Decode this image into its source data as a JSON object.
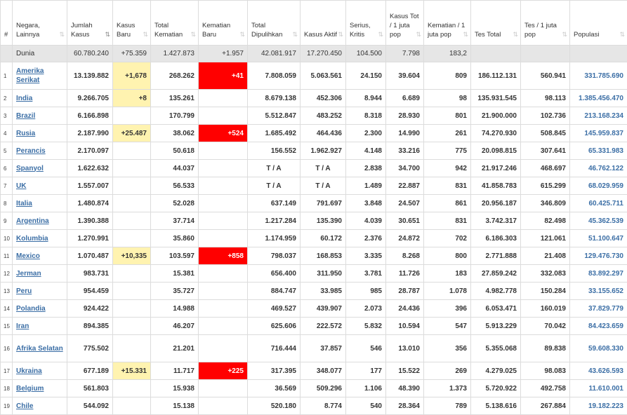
{
  "headers": [
    {
      "label": "#",
      "sortable": false
    },
    {
      "label": "Negara, Lainnya",
      "sortable": true
    },
    {
      "label": "Jumlah Kasus",
      "sortable": true,
      "active": true
    },
    {
      "label": "Kasus Baru",
      "sortable": true
    },
    {
      "label": "Total Kematian",
      "sortable": true
    },
    {
      "label": "Kematian Baru",
      "sortable": true
    },
    {
      "label": "Total Dipulihkan",
      "sortable": true
    },
    {
      "label": "Kasus Aktif",
      "sortable": true
    },
    {
      "label": "Serius, Kritis",
      "sortable": true
    },
    {
      "label": "Kasus Tot / 1 juta pop",
      "sortable": true
    },
    {
      "label": "Kematian / 1 juta pop",
      "sortable": true
    },
    {
      "label": "Tes Total",
      "sortable": true
    },
    {
      "label": "Tes / 1 juta pop",
      "sortable": true
    },
    {
      "label": "Populasi",
      "sortable": true
    }
  ],
  "world": {
    "name": "Dunia",
    "total_cases": "60.780.240",
    "new_cases": "+75.359",
    "total_deaths": "1.427.873",
    "new_deaths": "+1.957",
    "recovered": "42.081.917",
    "active": "17.270.450",
    "critical": "104.500",
    "cases_per_m": "7.798",
    "deaths_per_m": "183,2",
    "tests": "",
    "tests_per_m": "",
    "population": ""
  },
  "rows": [
    {
      "idx": "1",
      "name": "Amerika Serikat",
      "total_cases": "13.139.882",
      "new_cases": "+1,678",
      "total_deaths": "268.262",
      "new_deaths": "+41",
      "recovered": "7.808.059",
      "active": "5.063.561",
      "critical": "24.150",
      "cases_per_m": "39.604",
      "deaths_per_m": "809",
      "tests": "186.112.131",
      "tests_per_m": "560.941",
      "population": "331.785.690",
      "tall": true
    },
    {
      "idx": "2",
      "name": "India",
      "total_cases": "9.266.705",
      "new_cases": "+8",
      "total_deaths": "135.261",
      "new_deaths": "",
      "recovered": "8.679.138",
      "active": "452.306",
      "critical": "8.944",
      "cases_per_m": "6.689",
      "deaths_per_m": "98",
      "tests": "135.931.545",
      "tests_per_m": "98.113",
      "population": "1.385.456.470"
    },
    {
      "idx": "3",
      "name": "Brazil",
      "total_cases": "6.166.898",
      "new_cases": "",
      "total_deaths": "170.799",
      "new_deaths": "",
      "recovered": "5.512.847",
      "active": "483.252",
      "critical": "8.318",
      "cases_per_m": "28.930",
      "deaths_per_m": "801",
      "tests": "21.900.000",
      "tests_per_m": "102.736",
      "population": "213.168.234"
    },
    {
      "idx": "4",
      "name": "Rusia",
      "total_cases": "2.187.990",
      "new_cases": "+25.487",
      "total_deaths": "38.062",
      "new_deaths": "+524",
      "recovered": "1.685.492",
      "active": "464.436",
      "critical": "2.300",
      "cases_per_m": "14.990",
      "deaths_per_m": "261",
      "tests": "74.270.930",
      "tests_per_m": "508.845",
      "population": "145.959.837"
    },
    {
      "idx": "5",
      "name": "Perancis",
      "total_cases": "2.170.097",
      "new_cases": "",
      "total_deaths": "50.618",
      "new_deaths": "",
      "recovered": "156.552",
      "active": "1.962.927",
      "critical": "4.148",
      "cases_per_m": "33.216",
      "deaths_per_m": "775",
      "tests": "20.098.815",
      "tests_per_m": "307.641",
      "population": "65.331.983"
    },
    {
      "idx": "6",
      "name": "Spanyol",
      "total_cases": "1.622.632",
      "new_cases": "",
      "total_deaths": "44.037",
      "new_deaths": "",
      "recovered": "T / A",
      "active": "T / A",
      "critical": "2.838",
      "cases_per_m": "34.700",
      "deaths_per_m": "942",
      "tests": "21.917.246",
      "tests_per_m": "468.697",
      "population": "46.762.122"
    },
    {
      "idx": "7",
      "name": "UK",
      "total_cases": "1.557.007",
      "new_cases": "",
      "total_deaths": "56.533",
      "new_deaths": "",
      "recovered": "T / A",
      "active": "T / A",
      "critical": "1.489",
      "cases_per_m": "22.887",
      "deaths_per_m": "831",
      "tests": "41.858.783",
      "tests_per_m": "615.299",
      "population": "68.029.959"
    },
    {
      "idx": "8",
      "name": "Italia",
      "total_cases": "1.480.874",
      "new_cases": "",
      "total_deaths": "52.028",
      "new_deaths": "",
      "recovered": "637.149",
      "active": "791.697",
      "critical": "3.848",
      "cases_per_m": "24.507",
      "deaths_per_m": "861",
      "tests": "20.956.187",
      "tests_per_m": "346.809",
      "population": "60.425.711"
    },
    {
      "idx": "9",
      "name": "Argentina",
      "total_cases": "1.390.388",
      "new_cases": "",
      "total_deaths": "37.714",
      "new_deaths": "",
      "recovered": "1.217.284",
      "active": "135.390",
      "critical": "4.039",
      "cases_per_m": "30.651",
      "deaths_per_m": "831",
      "tests": "3.742.317",
      "tests_per_m": "82.498",
      "population": "45.362.539"
    },
    {
      "idx": "10",
      "name": "Kolumbia",
      "total_cases": "1.270.991",
      "new_cases": "",
      "total_deaths": "35.860",
      "new_deaths": "",
      "recovered": "1.174.959",
      "active": "60.172",
      "critical": "2.376",
      "cases_per_m": "24.872",
      "deaths_per_m": "702",
      "tests": "6.186.303",
      "tests_per_m": "121.061",
      "population": "51.100.647"
    },
    {
      "idx": "11",
      "name": "Mexico",
      "total_cases": "1.070.487",
      "new_cases": "+10,335",
      "total_deaths": "103.597",
      "new_deaths": "+858",
      "recovered": "798.037",
      "active": "168.853",
      "critical": "3.335",
      "cases_per_m": "8.268",
      "deaths_per_m": "800",
      "tests": "2.771.888",
      "tests_per_m": "21.408",
      "population": "129.476.730"
    },
    {
      "idx": "12",
      "name": "Jerman",
      "total_cases": "983.731",
      "new_cases": "",
      "total_deaths": "15.381",
      "new_deaths": "",
      "recovered": "656.400",
      "active": "311.950",
      "critical": "3.781",
      "cases_per_m": "11.726",
      "deaths_per_m": "183",
      "tests": "27.859.242",
      "tests_per_m": "332.083",
      "population": "83.892.297"
    },
    {
      "idx": "13",
      "name": "Peru",
      "total_cases": "954.459",
      "new_cases": "",
      "total_deaths": "35.727",
      "new_deaths": "",
      "recovered": "884.747",
      "active": "33.985",
      "critical": "985",
      "cases_per_m": "28.787",
      "deaths_per_m": "1.078",
      "tests": "4.982.778",
      "tests_per_m": "150.284",
      "population": "33.155.652"
    },
    {
      "idx": "14",
      "name": "Polandia",
      "total_cases": "924.422",
      "new_cases": "",
      "total_deaths": "14.988",
      "new_deaths": "",
      "recovered": "469.527",
      "active": "439.907",
      "critical": "2.073",
      "cases_per_m": "24.436",
      "deaths_per_m": "396",
      "tests": "6.053.471",
      "tests_per_m": "160.019",
      "population": "37.829.779"
    },
    {
      "idx": "15",
      "name": "Iran",
      "total_cases": "894.385",
      "new_cases": "",
      "total_deaths": "46.207",
      "new_deaths": "",
      "recovered": "625.606",
      "active": "222.572",
      "critical": "5.832",
      "cases_per_m": "10.594",
      "deaths_per_m": "547",
      "tests": "5.913.229",
      "tests_per_m": "70.042",
      "population": "84.423.659"
    },
    {
      "idx": "16",
      "name": "Afrika Selatan",
      "total_cases": "775.502",
      "new_cases": "",
      "total_deaths": "21.201",
      "new_deaths": "",
      "recovered": "716.444",
      "active": "37.857",
      "critical": "546",
      "cases_per_m": "13.010",
      "deaths_per_m": "356",
      "tests": "5.355.068",
      "tests_per_m": "89.838",
      "population": "59.608.330",
      "tall": true
    },
    {
      "idx": "17",
      "name": "Ukraina",
      "total_cases": "677.189",
      "new_cases": "+15.331",
      "total_deaths": "11.717",
      "new_deaths": "+225",
      "recovered": "317.395",
      "active": "348.077",
      "critical": "177",
      "cases_per_m": "15.522",
      "deaths_per_m": "269",
      "tests": "4.279.025",
      "tests_per_m": "98.083",
      "population": "43.626.593"
    },
    {
      "idx": "18",
      "name": "Belgium",
      "total_cases": "561.803",
      "new_cases": "",
      "total_deaths": "15.938",
      "new_deaths": "",
      "recovered": "36.569",
      "active": "509.296",
      "critical": "1.106",
      "cases_per_m": "48.390",
      "deaths_per_m": "1.373",
      "tests": "5.720.922",
      "tests_per_m": "492.758",
      "population": "11.610.001"
    },
    {
      "idx": "19",
      "name": "Chile",
      "total_cases": "544.092",
      "new_cases": "",
      "total_deaths": "15.138",
      "new_deaths": "",
      "recovered": "520.180",
      "active": "8.774",
      "critical": "540",
      "cases_per_m": "28.364",
      "deaths_per_m": "789",
      "tests": "5.138.616",
      "tests_per_m": "267.884",
      "population": "19.182.223"
    }
  ],
  "colors": {
    "new_cases_bg": "#fff3b0",
    "new_deaths_bg": "#ff0000",
    "world_row_bg": "#e6e6e6",
    "link": "#3b6ea5"
  },
  "icons": {
    "sort": "sort-arrows-icon",
    "sort_glyph": "⇅"
  }
}
